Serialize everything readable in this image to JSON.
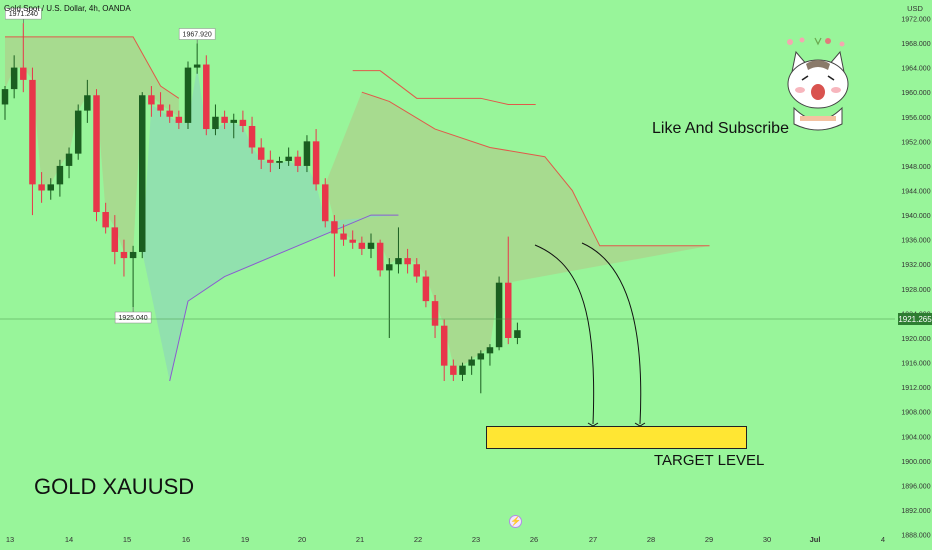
{
  "header": {
    "title": "Gold Spot / U.S. Dollar, 4h, OANDA"
  },
  "captions": {
    "like_subscribe": "Like And Subscribe",
    "symbol": "GOLD XAUUSD",
    "target": "TARGET LEVEL"
  },
  "colors": {
    "background": "#98f59a",
    "bull": "#1a5e20",
    "bear": "#e8364a",
    "upper_band": "#e05a4a",
    "lower_band": "#8a5cd0",
    "fill_red": "#a8d88e",
    "fill_blue": "#8fddb2",
    "target_box": "#ffe633"
  },
  "icons": {
    "event": "lightning-icon",
    "sticker": "cat-sticker-icon"
  },
  "chart_data": {
    "type": "candlestick",
    "title": "Gold Spot / U.S. Dollar, 4h, OANDA",
    "ylabel": "USD",
    "ylim": [
      1885.5,
      1975.0
    ],
    "y_ticks": [
      1888.0,
      1892.0,
      1896.0,
      1900.0,
      1904.0,
      1908.0,
      1912.0,
      1916.0,
      1920.0,
      1924.0,
      1928.0,
      1932.0,
      1936.0,
      1940.0,
      1944.0,
      1948.0,
      1952.0,
      1956.0,
      1960.0,
      1964.0,
      1968.0,
      1972.0
    ],
    "y_tick_format": "fixed3",
    "x_ticks": [
      "13",
      "14",
      "15",
      "16",
      "19",
      "20",
      "21",
      "22",
      "23",
      "26",
      "27",
      "28",
      "29",
      "30",
      "Jul",
      "4"
    ],
    "current_price": "1921.265",
    "price_labels": [
      "1971.240",
      "1967.920",
      "1925.040"
    ],
    "candles": [
      {
        "o": 1958.0,
        "h": 1961.0,
        "l": 1955.5,
        "c": 1960.5
      },
      {
        "o": 1960.5,
        "h": 1966.0,
        "l": 1959.0,
        "c": 1964.0
      },
      {
        "o": 1964.0,
        "h": 1971.24,
        "l": 1960.0,
        "c": 1962.0
      },
      {
        "o": 1962.0,
        "h": 1964.0,
        "l": 1940.0,
        "c": 1945.0
      },
      {
        "o": 1945.0,
        "h": 1947.0,
        "l": 1942.0,
        "c": 1944.0
      },
      {
        "o": 1944.0,
        "h": 1946.0,
        "l": 1942.5,
        "c": 1945.0
      },
      {
        "o": 1945.0,
        "h": 1949.0,
        "l": 1943.0,
        "c": 1948.0
      },
      {
        "o": 1948.0,
        "h": 1951.0,
        "l": 1946.0,
        "c": 1950.0
      },
      {
        "o": 1950.0,
        "h": 1958.0,
        "l": 1949.0,
        "c": 1957.0
      },
      {
        "o": 1957.0,
        "h": 1962.0,
        "l": 1955.0,
        "c": 1959.5
      },
      {
        "o": 1959.5,
        "h": 1960.5,
        "l": 1939.0,
        "c": 1940.5
      },
      {
        "o": 1940.5,
        "h": 1942.0,
        "l": 1937.0,
        "c": 1938.0
      },
      {
        "o": 1938.0,
        "h": 1940.0,
        "l": 1932.0,
        "c": 1934.0
      },
      {
        "o": 1934.0,
        "h": 1936.0,
        "l": 1930.0,
        "c": 1933.0
      },
      {
        "o": 1933.0,
        "h": 1935.0,
        "l": 1925.04,
        "c": 1934.0
      },
      {
        "o": 1934.0,
        "h": 1960.0,
        "l": 1933.0,
        "c": 1959.5
      },
      {
        "o": 1959.5,
        "h": 1961.0,
        "l": 1956.0,
        "c": 1958.0
      },
      {
        "o": 1958.0,
        "h": 1960.0,
        "l": 1956.0,
        "c": 1957.0
      },
      {
        "o": 1957.0,
        "h": 1958.0,
        "l": 1955.0,
        "c": 1956.0
      },
      {
        "o": 1956.0,
        "h": 1957.0,
        "l": 1954.0,
        "c": 1955.0
      },
      {
        "o": 1955.0,
        "h": 1965.0,
        "l": 1954.0,
        "c": 1964.0
      },
      {
        "o": 1964.0,
        "h": 1967.92,
        "l": 1963.0,
        "c": 1964.5
      },
      {
        "o": 1964.5,
        "h": 1966.0,
        "l": 1953.0,
        "c": 1954.0
      },
      {
        "o": 1954.0,
        "h": 1958.0,
        "l": 1953.0,
        "c": 1956.0
      },
      {
        "o": 1956.0,
        "h": 1957.0,
        "l": 1954.0,
        "c": 1955.0
      },
      {
        "o": 1955.0,
        "h": 1956.5,
        "l": 1952.5,
        "c": 1955.5
      },
      {
        "o": 1955.5,
        "h": 1957.0,
        "l": 1953.5,
        "c": 1954.5
      },
      {
        "o": 1954.5,
        "h": 1956.0,
        "l": 1950.0,
        "c": 1951.0
      },
      {
        "o": 1951.0,
        "h": 1952.5,
        "l": 1947.5,
        "c": 1949.0
      },
      {
        "o": 1949.0,
        "h": 1950.5,
        "l": 1947.0,
        "c": 1948.5
      },
      {
        "o": 1948.5,
        "h": 1949.5,
        "l": 1947.5,
        "c": 1948.8
      },
      {
        "o": 1948.8,
        "h": 1951.0,
        "l": 1948.0,
        "c": 1949.5
      },
      {
        "o": 1949.5,
        "h": 1950.5,
        "l": 1947.0,
        "c": 1948.0
      },
      {
        "o": 1948.0,
        "h": 1953.0,
        "l": 1947.0,
        "c": 1952.0
      },
      {
        "o": 1952.0,
        "h": 1954.0,
        "l": 1944.0,
        "c": 1945.0
      },
      {
        "o": 1945.0,
        "h": 1946.0,
        "l": 1938.0,
        "c": 1939.0
      },
      {
        "o": 1939.0,
        "h": 1940.0,
        "l": 1930.0,
        "c": 1937.0
      },
      {
        "o": 1937.0,
        "h": 1938.5,
        "l": 1935.0,
        "c": 1936.0
      },
      {
        "o": 1936.0,
        "h": 1937.5,
        "l": 1934.5,
        "c": 1935.5
      },
      {
        "o": 1935.5,
        "h": 1936.5,
        "l": 1933.5,
        "c": 1934.5
      },
      {
        "o": 1934.5,
        "h": 1937.0,
        "l": 1933.0,
        "c": 1935.5
      },
      {
        "o": 1935.5,
        "h": 1936.0,
        "l": 1930.0,
        "c": 1931.0
      },
      {
        "o": 1931.0,
        "h": 1933.0,
        "l": 1920.0,
        "c": 1932.0
      },
      {
        "o": 1932.0,
        "h": 1938.0,
        "l": 1930.5,
        "c": 1933.0
      },
      {
        "o": 1933.0,
        "h": 1934.5,
        "l": 1930.5,
        "c": 1932.0
      },
      {
        "o": 1932.0,
        "h": 1933.0,
        "l": 1929.0,
        "c": 1930.0
      },
      {
        "o": 1930.0,
        "h": 1931.0,
        "l": 1925.0,
        "c": 1926.0
      },
      {
        "o": 1926.0,
        "h": 1927.0,
        "l": 1920.0,
        "c": 1922.0
      },
      {
        "o": 1922.0,
        "h": 1923.0,
        "l": 1913.0,
        "c": 1915.5
      },
      {
        "o": 1915.5,
        "h": 1916.5,
        "l": 1913.0,
        "c": 1914.0
      },
      {
        "o": 1914.0,
        "h": 1916.0,
        "l": 1913.0,
        "c": 1915.5
      },
      {
        "o": 1915.5,
        "h": 1917.0,
        "l": 1914.0,
        "c": 1916.5
      },
      {
        "o": 1916.5,
        "h": 1918.0,
        "l": 1911.0,
        "c": 1917.5
      },
      {
        "o": 1917.5,
        "h": 1919.0,
        "l": 1915.5,
        "c": 1918.5
      },
      {
        "o": 1918.5,
        "h": 1930.0,
        "l": 1918.0,
        "c": 1929.0
      },
      {
        "o": 1929.0,
        "h": 1936.5,
        "l": 1919.0,
        "c": 1920.0
      },
      {
        "o": 1920.0,
        "h": 1922.5,
        "l": 1919.0,
        "c": 1921.265
      }
    ],
    "upper_band": [
      [
        0,
        1969.0
      ],
      [
        14,
        1969.0
      ],
      [
        17,
        1961.0
      ],
      [
        19,
        1959.0
      ],
      [
        38,
        1963.5
      ],
      [
        41,
        1963.5
      ],
      [
        45,
        1959.0
      ],
      [
        52,
        1959.0
      ],
      [
        55,
        1958.0
      ],
      [
        58,
        1958.0
      ],
      [
        39,
        1960.0
      ],
      [
        42,
        1958.5
      ],
      [
        47,
        1954.0
      ],
      [
        53,
        1951.0
      ],
      [
        59,
        1949.5
      ],
      [
        62,
        1944.0
      ],
      [
        65,
        1935.0
      ],
      [
        77,
        1935.0
      ]
    ],
    "lower_band": [
      [
        18,
        1913.0
      ],
      [
        20,
        1926.0
      ],
      [
        24,
        1930.0
      ],
      [
        40,
        1940.0
      ],
      [
        43,
        1940.0
      ]
    ]
  }
}
